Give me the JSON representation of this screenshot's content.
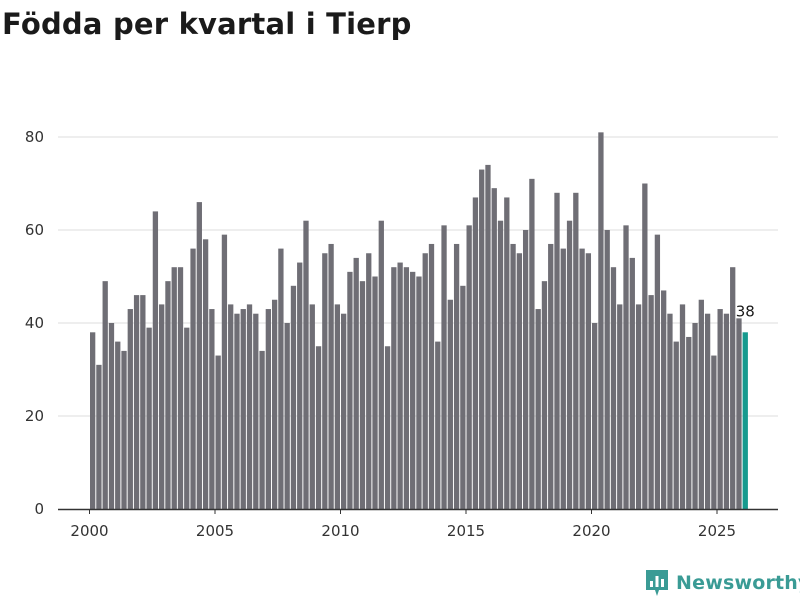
{
  "title": "Födda per kvartal i Tierp",
  "brand": {
    "name": "Newsworthy",
    "icon": "newsworthy-logo-icon",
    "color": "#3a9b95"
  },
  "colors": {
    "bar": "#6f6e75",
    "highlight": "#169a8e",
    "grid": "#dddddd",
    "axis": "#333333"
  },
  "chart_data": {
    "type": "bar",
    "title": "Födda per kvartal i Tierp",
    "xlabel": "",
    "ylabel": "",
    "ylim": [
      0,
      85
    ],
    "yticks": [
      0,
      20,
      40,
      60,
      80
    ],
    "x_start": 2000,
    "x_end": 2026,
    "xticks": [
      2000,
      2005,
      2010,
      2015,
      2020,
      2025
    ],
    "grid": true,
    "series": [
      {
        "name": "Födda",
        "start_year": 2000,
        "periods_per_year": 4,
        "values": [
          38,
          31,
          49,
          40,
          36,
          34,
          43,
          46,
          46,
          39,
          64,
          44,
          49,
          52,
          52,
          39,
          56,
          66,
          58,
          43,
          33,
          59,
          44,
          42,
          43,
          44,
          42,
          34,
          43,
          45,
          56,
          40,
          48,
          53,
          62,
          44,
          35,
          55,
          57,
          44,
          42,
          51,
          54,
          49,
          55,
          50,
          62,
          35,
          52,
          53,
          52,
          51,
          50,
          55,
          57,
          36,
          61,
          45,
          57,
          48,
          61,
          67,
          73,
          74,
          69,
          62,
          67,
          57,
          55,
          60,
          71,
          43,
          49,
          57,
          68,
          56,
          62,
          68,
          56,
          55,
          40,
          81,
          60,
          52,
          44,
          61,
          54,
          44,
          70,
          46,
          59,
          47,
          42,
          36,
          44,
          37,
          40,
          45,
          42,
          33,
          43,
          42,
          52,
          41,
          38
        ]
      }
    ],
    "highlight": {
      "label": "38",
      "value": 38
    }
  }
}
